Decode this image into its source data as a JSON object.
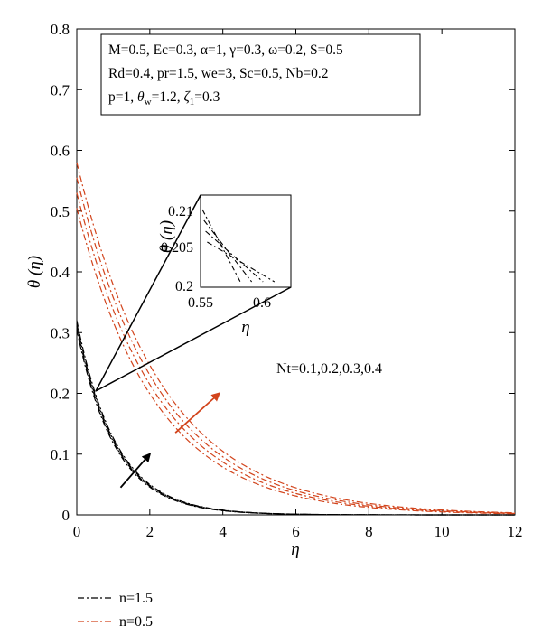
{
  "colors": {
    "black_series": "#000000",
    "orange_series": "#d2441c",
    "axis": "#000000"
  },
  "chart_data": {
    "type": "line",
    "xlabel": "η",
    "ylabel": "θ (η)",
    "xlim": [
      0,
      12
    ],
    "ylim": [
      0,
      0.8
    ],
    "x_ticks": [
      "0",
      "2",
      "4",
      "6",
      "8",
      "10",
      "12"
    ],
    "y_ticks": [
      "0",
      "0.1",
      "0.2",
      "0.3",
      "0.4",
      "0.5",
      "0.6",
      "0.7",
      "0.8"
    ],
    "grid": false,
    "legend_position": "below-left",
    "legend": [
      {
        "label": "n=1.5",
        "color": "#000000",
        "dash": "dashdot"
      },
      {
        "label": "n=0.5",
        "color": "#d2441c",
        "dash": "dashdot"
      }
    ],
    "parameter_box": [
      "M=0.5, Ec=0.3, α=1, γ=0.3, ω=0.2, S=0.5",
      "Rd=0.4, pr=1.5, we=3, Sc=0.5, Nb=0.2",
      "p=1, θw=1.2, ζ1=0.3"
    ],
    "parameter_box_parts": {
      "line3_a": "p=1, ",
      "theta": "θ",
      "w_sub": "w",
      "line3_b": "=1.2, ",
      "zeta": "ζ",
      "one_sub": "1",
      "line3_c": "=0.3"
    },
    "annotation": "Nt=0.1,0.2,0.3,0.4",
    "series": [
      {
        "n": "1.5",
        "Nt": "0.1",
        "color": "#000000",
        "theta0": 0.305,
        "decay": 0.95
      },
      {
        "n": "1.5",
        "Nt": "0.2",
        "color": "#000000",
        "theta0": 0.31,
        "decay": 0.942
      },
      {
        "n": "1.5",
        "Nt": "0.3",
        "color": "#000000",
        "theta0": 0.315,
        "decay": 0.935
      },
      {
        "n": "1.5",
        "Nt": "0.4",
        "color": "#000000",
        "theta0": 0.32,
        "decay": 0.928
      },
      {
        "n": "0.5",
        "Nt": "0.1",
        "color": "#d2441c",
        "theta0": 0.505,
        "decay": 0.465
      },
      {
        "n": "0.5",
        "Nt": "0.2",
        "color": "#d2441c",
        "theta0": 0.53,
        "decay": 0.452
      },
      {
        "n": "0.5",
        "Nt": "0.3",
        "color": "#d2441c",
        "theta0": 0.555,
        "decay": 0.44
      },
      {
        "n": "0.5",
        "Nt": "0.4",
        "color": "#d2441c",
        "theta0": 0.58,
        "decay": 0.428
      }
    ],
    "inset": {
      "xlabel": "η",
      "ylabel": "θ (η)",
      "xlim": [
        0.55,
        0.625
      ],
      "ylim": [
        0.2,
        0.2125
      ],
      "x_ticks": [
        "0.55",
        "0.6"
      ],
      "y_ticks": [
        "0.2",
        "0.205",
        "0.21"
      ],
      "zoom_point": [
        0.58,
        0.205
      ]
    },
    "arrows": [
      {
        "color": "#000000",
        "from": [
          1.2,
          0.045
        ],
        "to": [
          2.0,
          0.1
        ]
      },
      {
        "color": "#d2441c",
        "from": [
          2.7,
          0.135
        ],
        "to": [
          3.9,
          0.2
        ]
      }
    ]
  }
}
